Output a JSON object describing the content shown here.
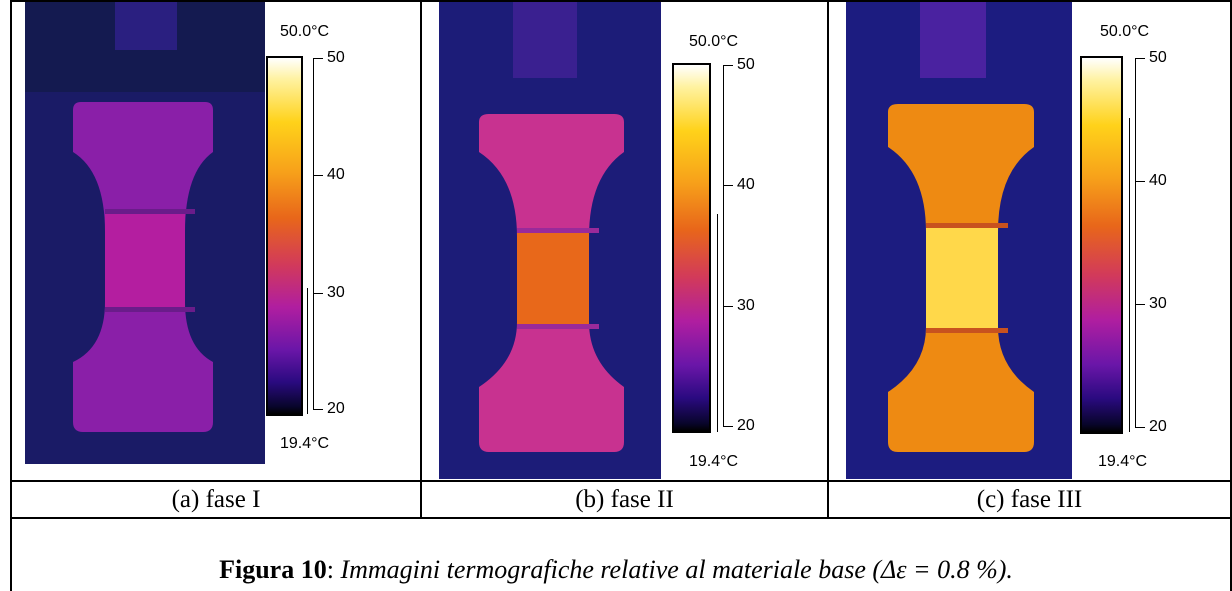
{
  "panels": [
    {
      "id": "a",
      "caption": "(a) fase I",
      "max_label": "50.0°C",
      "min_label": "19.4°C",
      "ticks": [
        "50",
        "40",
        "30",
        "20"
      ],
      "colors": {
        "bg": "#1a1b66",
        "specimen_grip": "#8a1fa8",
        "specimen_center": "#b41ea0",
        "band": "#6a1c8a",
        "tab": "#2a1f80"
      }
    },
    {
      "id": "b",
      "caption": "(b) fase II",
      "max_label": "50.0°C",
      "min_label": "19.4°C",
      "ticks": [
        "50",
        "40",
        "30",
        "20"
      ],
      "colors": {
        "bg": "#1c1c78",
        "specimen_grip": "#c83290",
        "specimen_center": "#e8681a",
        "band": "#9a2a9a",
        "tab": "#3a2090"
      }
    },
    {
      "id": "c",
      "caption": "(c) fase III",
      "max_label": "50.0°C",
      "min_label": "19.4°C",
      "ticks": [
        "50",
        "40",
        "30",
        "20"
      ],
      "colors": {
        "bg": "#1c1c80",
        "specimen_grip": "#ee8a12",
        "specimen_center": "#ffd84a",
        "band": "#c8521e",
        "tab": "#4a22a0"
      }
    }
  ],
  "figure_caption": {
    "label": "Figura 10",
    "separator": ": ",
    "text": "Immagini termografiche relative al materiale base (Δε = 0.8 %)."
  }
}
